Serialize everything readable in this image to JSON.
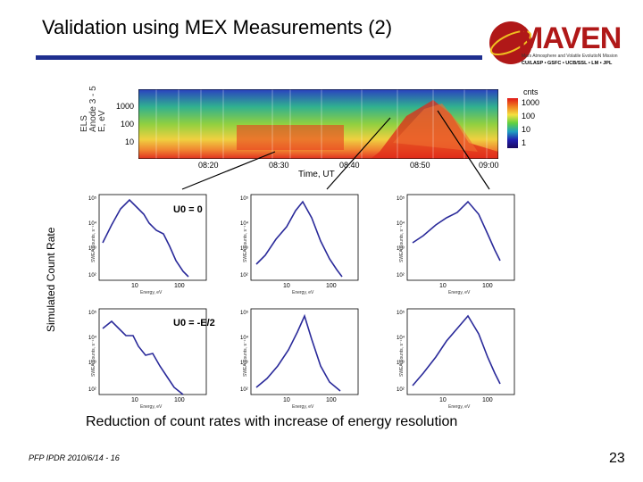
{
  "slide": {
    "title": "Validation using MEX Measurements (2)",
    "y_axis_label": "Simulated Count Rate",
    "caption": "Reduction of count rates with increase of energy resolution",
    "footer": "PFP IPDR 2010/6/14 - 16",
    "page_number": "23"
  },
  "logo": {
    "name": "MAVEN",
    "subtitle": "Mars Atmosphere and Volatile EvolutioN Mission",
    "partners": "CU/LASP • GSFC • UCB/SSL • LM • JPL"
  },
  "spectrogram": {
    "y_label_lines": [
      "ELS",
      "Anode 3 - 5",
      "E, eV"
    ],
    "y_ticks": [
      "1000",
      "100",
      "10"
    ],
    "x_ticks": [
      "08:20",
      "08:30",
      "08:40",
      "08:50",
      "09:00"
    ],
    "x_label": "Time, UT",
    "colorbar_title": "cnts",
    "colorbar_ticks": [
      "1000",
      "100",
      "10",
      "1"
    ]
  },
  "panels": {
    "y_axis_label": "SWEA Counts, s⁻¹",
    "x_axis_label": "Energy, eV",
    "y_ticks": [
      "10⁵",
      "10⁴",
      "10³",
      "10²"
    ],
    "x_ticks": [
      "10",
      "100"
    ],
    "row_labels": [
      "U0 = 0",
      "U0 = -E/2"
    ]
  }
}
